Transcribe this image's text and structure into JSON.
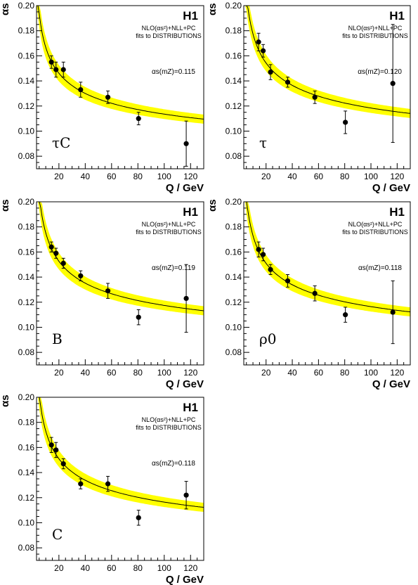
{
  "chart_data": [
    {
      "type": "scatter",
      "experiment": "H1",
      "note_line1": "NLO(αs²)+NLL+PC",
      "note_line2": "fits to DISTRIBUTIONS",
      "alpha_s_label": "αs(mZ)=0.115",
      "alpha_s": 0.115,
      "observable": "τC",
      "xlabel": "Q / GeV",
      "ylabel": "αs",
      "xlim": [
        3,
        130
      ],
      "ylim": [
        0.07,
        0.2
      ],
      "x_ticks": [
        "20",
        "40",
        "60",
        "80",
        "100",
        "120"
      ],
      "y_ticks": [
        "0.08",
        "0.10",
        "0.12",
        "0.14",
        "0.16",
        "0.18",
        "0.20"
      ],
      "band_color": "#ffff00",
      "points": [
        {
          "x": 14.3,
          "y": 0.155,
          "err": 0.005
        },
        {
          "x": 17.8,
          "y": 0.149,
          "err": 0.006
        },
        {
          "x": 23.4,
          "y": 0.149,
          "err": 0.006
        },
        {
          "x": 36.5,
          "y": 0.133,
          "err": 0.006
        },
        {
          "x": 57.2,
          "y": 0.127,
          "err": 0.005
        },
        {
          "x": 80.5,
          "y": 0.11,
          "err": 0.005
        },
        {
          "x": 116.7,
          "y": 0.09,
          "err": 0.018
        }
      ]
    },
    {
      "type": "scatter",
      "experiment": "H1",
      "note_line1": "NLO(αs²)+NLL+PC",
      "note_line2": "fits to DISTRIBUTIONS",
      "alpha_s_label": "αs(mZ)=0.120",
      "alpha_s": 0.12,
      "observable": "τ",
      "xlabel": "Q / GeV",
      "ylabel": "αs",
      "xlim": [
        3,
        130
      ],
      "ylim": [
        0.07,
        0.2
      ],
      "x_ticks": [
        "20",
        "40",
        "60",
        "80",
        "100",
        "120"
      ],
      "y_ticks": [
        "0.08",
        "0.10",
        "0.12",
        "0.14",
        "0.16",
        "0.18",
        "0.20"
      ],
      "band_color": "#ffff00",
      "points": [
        {
          "x": 14.3,
          "y": 0.171,
          "err": 0.007
        },
        {
          "x": 17.8,
          "y": 0.164,
          "err": 0.005
        },
        {
          "x": 23.4,
          "y": 0.147,
          "err": 0.006
        },
        {
          "x": 36.5,
          "y": 0.139,
          "err": 0.004
        },
        {
          "x": 57.2,
          "y": 0.127,
          "err": 0.005
        },
        {
          "x": 80.5,
          "y": 0.107,
          "err": 0.009
        },
        {
          "x": 116.7,
          "y": 0.138,
          "err": 0.047
        }
      ]
    },
    {
      "type": "scatter",
      "experiment": "H1",
      "note_line1": "NLO(αs²)+NLL+PC",
      "note_line2": "fits to DISTRIBUTIONS",
      "alpha_s_label": "αs(mZ)=0.119",
      "alpha_s": 0.119,
      "observable": "B",
      "xlabel": "Q / GeV",
      "ylabel": "αs",
      "xlim": [
        3,
        130
      ],
      "ylim": [
        0.07,
        0.2
      ],
      "x_ticks": [
        "20",
        "40",
        "60",
        "80",
        "100",
        "120"
      ],
      "y_ticks": [
        "0.08",
        "0.10",
        "0.12",
        "0.14",
        "0.16",
        "0.18",
        "0.20"
      ],
      "band_color": "#ffff00",
      "points": [
        {
          "x": 14.3,
          "y": 0.164,
          "err": 0.004
        },
        {
          "x": 17.8,
          "y": 0.159,
          "err": 0.004
        },
        {
          "x": 23.4,
          "y": 0.151,
          "err": 0.004
        },
        {
          "x": 36.5,
          "y": 0.141,
          "err": 0.004
        },
        {
          "x": 57.2,
          "y": 0.129,
          "err": 0.006
        },
        {
          "x": 80.5,
          "y": 0.108,
          "err": 0.006
        },
        {
          "x": 116.7,
          "y": 0.123,
          "err": 0.027
        }
      ]
    },
    {
      "type": "scatter",
      "experiment": "H1",
      "note_line1": "NLO(αs²)+NLL+PC",
      "note_line2": "fits to DISTRIBUTIONS",
      "alpha_s_label": "αs(mZ)=0.118",
      "alpha_s": 0.118,
      "observable": "ρ0",
      "xlabel": "Q / GeV",
      "ylabel": "αs",
      "xlim": [
        3,
        130
      ],
      "ylim": [
        0.07,
        0.2
      ],
      "x_ticks": [
        "20",
        "40",
        "60",
        "80",
        "100",
        "120"
      ],
      "y_ticks": [
        "0.08",
        "0.10",
        "0.12",
        "0.14",
        "0.16",
        "0.18",
        "0.20"
      ],
      "band_color": "#ffff00",
      "points": [
        {
          "x": 14.3,
          "y": 0.162,
          "err": 0.006
        },
        {
          "x": 17.8,
          "y": 0.158,
          "err": 0.005
        },
        {
          "x": 23.4,
          "y": 0.146,
          "err": 0.004
        },
        {
          "x": 36.5,
          "y": 0.137,
          "err": 0.005
        },
        {
          "x": 57.2,
          "y": 0.127,
          "err": 0.006
        },
        {
          "x": 80.5,
          "y": 0.11,
          "err": 0.006
        },
        {
          "x": 116.7,
          "y": 0.112,
          "err": 0.025
        }
      ]
    },
    {
      "type": "scatter",
      "experiment": "H1",
      "note_line1": "NLO(αs²)+NLL+PC",
      "note_line2": "fits to DISTRIBUTIONS",
      "alpha_s_label": "αs(mZ)=0.118",
      "alpha_s": 0.118,
      "observable": "C",
      "xlabel": "Q / GeV",
      "ylabel": "αs",
      "xlim": [
        3,
        130
      ],
      "ylim": [
        0.07,
        0.2
      ],
      "x_ticks": [
        "20",
        "40",
        "60",
        "80",
        "100",
        "120"
      ],
      "y_ticks": [
        "0.08",
        "0.10",
        "0.12",
        "0.14",
        "0.16",
        "0.18",
        "0.20"
      ],
      "band_color": "#ffff00",
      "points": [
        {
          "x": 14.3,
          "y": 0.162,
          "err": 0.006
        },
        {
          "x": 17.8,
          "y": 0.158,
          "err": 0.006
        },
        {
          "x": 23.4,
          "y": 0.147,
          "err": 0.004
        },
        {
          "x": 36.5,
          "y": 0.131,
          "err": 0.004
        },
        {
          "x": 57.2,
          "y": 0.131,
          "err": 0.006
        },
        {
          "x": 80.5,
          "y": 0.104,
          "err": 0.006
        },
        {
          "x": 116.7,
          "y": 0.122,
          "err": 0.011
        }
      ]
    }
  ]
}
